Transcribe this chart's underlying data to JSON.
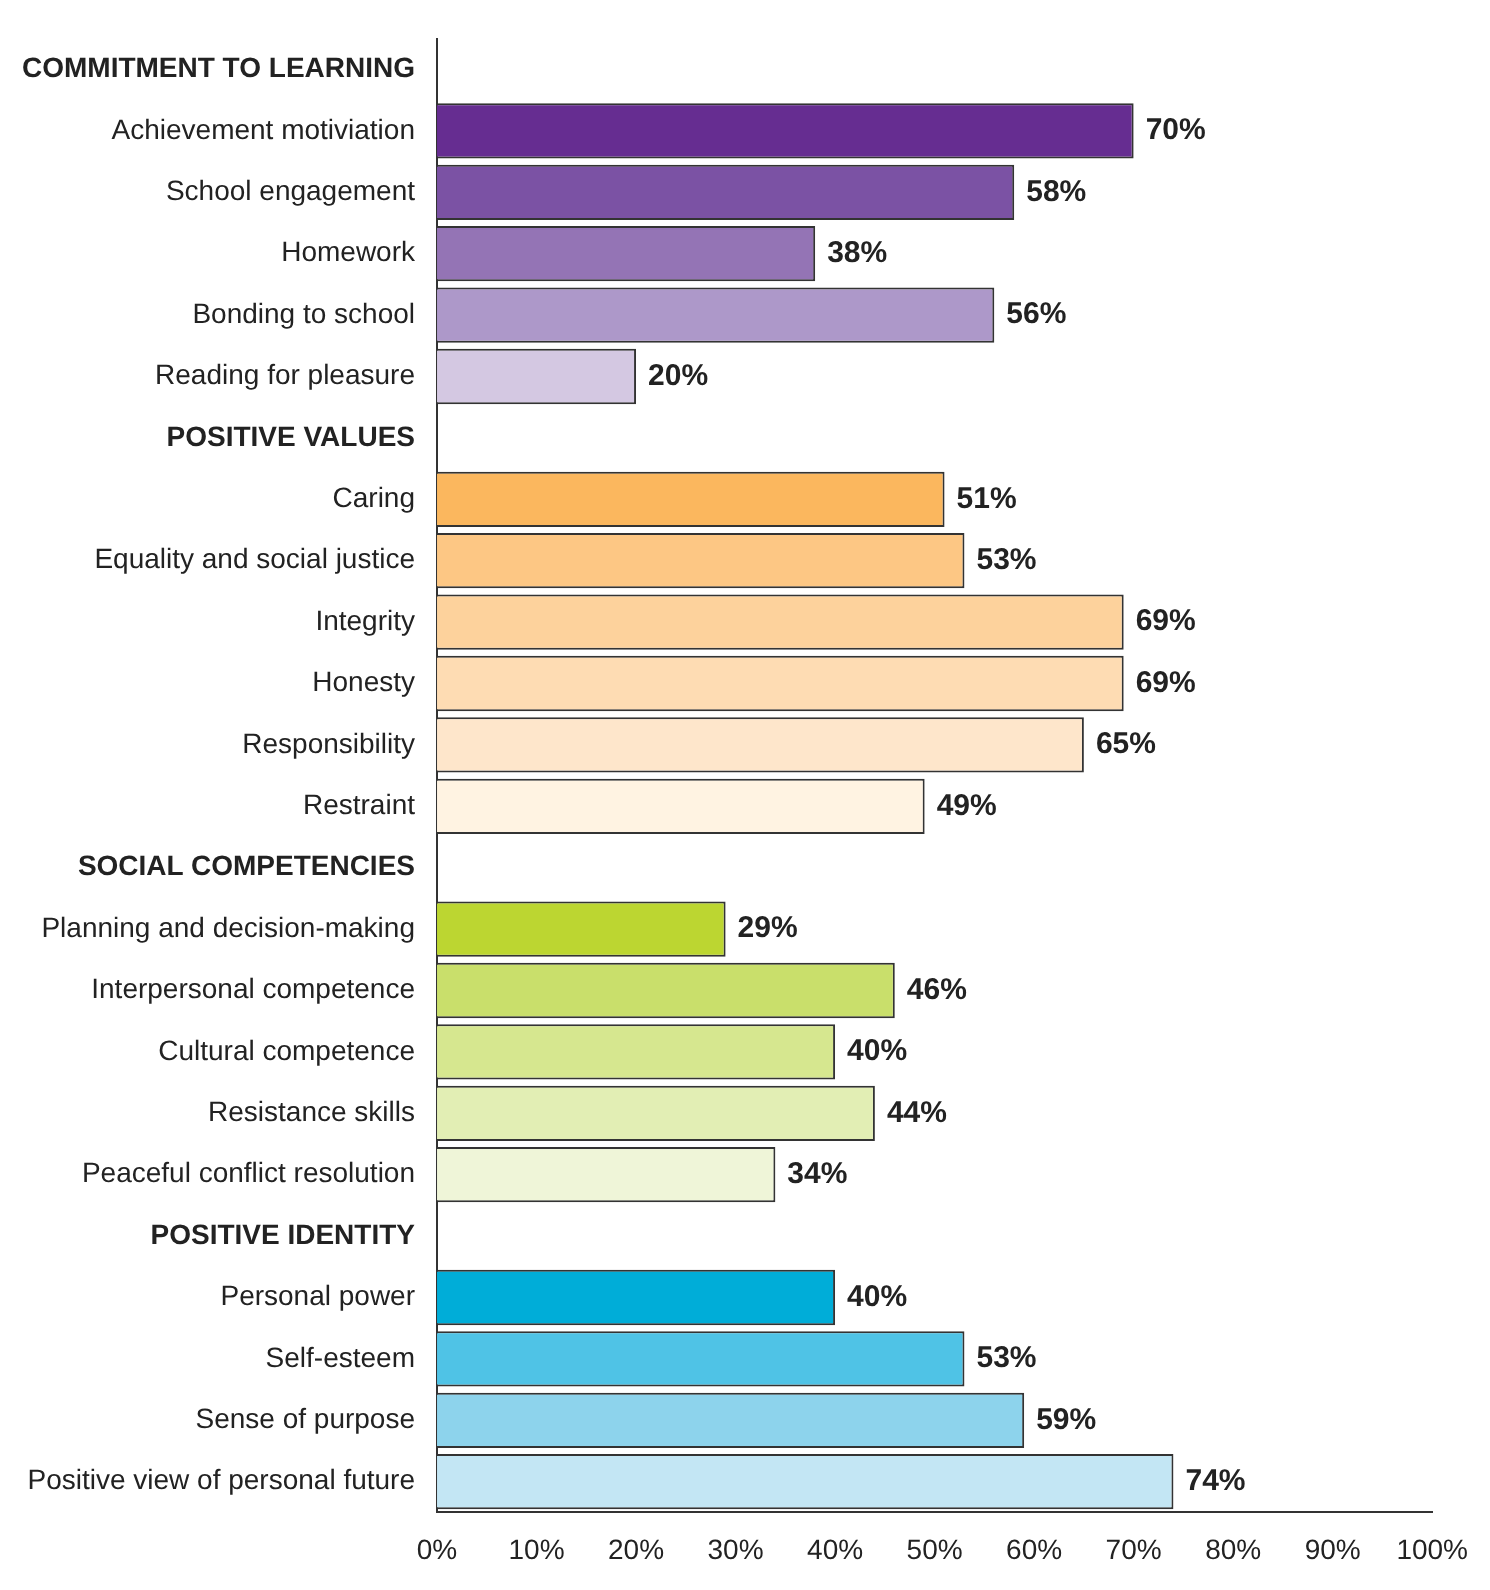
{
  "chart_data": {
    "type": "bar",
    "orientation": "horizontal",
    "categories": [
      "COMMITMENT TO LEARNING",
      "Achievement motiviation",
      "School engagement",
      "Homework",
      "Bonding to school",
      "Reading for pleasure",
      "POSITIVE VALUES",
      "Caring",
      "Equality and social justice",
      "Integrity",
      "Honesty",
      "Responsibility",
      "Restraint",
      "SOCIAL COMPETENCIES",
      "Planning and decision-making",
      "Interpersonal competence",
      "Cultural competence",
      "Resistance skills",
      "Peaceful conflict resolution",
      "POSITIVE IDENTITY",
      "Personal power",
      "Self-esteem",
      "Sense of purpose",
      "Positive view of personal future"
    ],
    "values": [
      null,
      70,
      58,
      38,
      56,
      20,
      null,
      51,
      53,
      69,
      69,
      65,
      49,
      null,
      29,
      46,
      40,
      44,
      34,
      null,
      40,
      53,
      59,
      74
    ],
    "value_labels": [
      null,
      "70%",
      "58%",
      "38%",
      "56%",
      "20%",
      null,
      "51%",
      "53%",
      "69%",
      "69%",
      "65%",
      "49%",
      null,
      "29%",
      "46%",
      "40%",
      "44%",
      "34%",
      null,
      "40%",
      "53%",
      "59%",
      "74%"
    ],
    "colors": [
      "#000000",
      "#662d91",
      "#7b52a4",
      "#9474b5",
      "#ad98c9",
      "#d4c8e2",
      "#000000",
      "#fbb75e",
      "#fdc784",
      "#fdd29c",
      "#fedcb3",
      "#fee6cb",
      "#fff3e2",
      "#000000",
      "#bcd631",
      "#c9df6b",
      "#d6e78f",
      "#e2eeb4",
      "#eff5d8",
      "#000000",
      "#00add8",
      "#4fc3e6",
      "#8dd3ec",
      "#c3e6f4"
    ],
    "xlim": [
      0,
      100
    ],
    "xticks": [
      {
        "value": 0,
        "label": "0%"
      },
      {
        "value": 10,
        "label": "10%"
      },
      {
        "value": 20,
        "label": "20%"
      },
      {
        "value": 30,
        "label": "30%"
      },
      {
        "value": 40,
        "label": "40%"
      },
      {
        "value": 50,
        "label": "50%"
      },
      {
        "value": 60,
        "label": "60%"
      },
      {
        "value": 70,
        "label": "70%"
      },
      {
        "value": 80,
        "label": "80%"
      },
      {
        "value": 90,
        "label": "90%"
      },
      {
        "value": 100,
        "label": "100%"
      }
    ],
    "grid": false,
    "legend": false
  }
}
